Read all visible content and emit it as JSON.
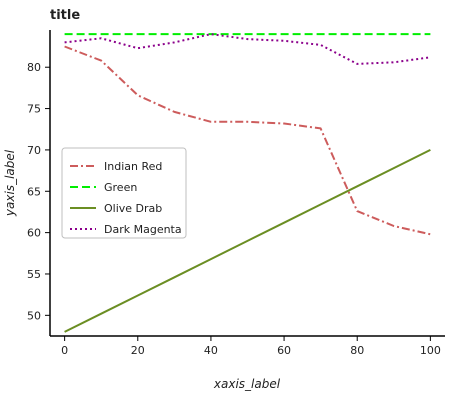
{
  "chart_data": {
    "type": "line",
    "title": "title",
    "xlabel": "xaxis_label",
    "ylabel": "yaxis_label",
    "xlim": [
      -4,
      104
    ],
    "ylim": [
      47.5,
      84.5
    ],
    "x_ticks": [
      0,
      20,
      40,
      60,
      80,
      100
    ],
    "y_ticks": [
      50,
      55,
      60,
      65,
      70,
      75,
      80
    ],
    "grid": false,
    "legend_position": "left",
    "x": [
      0,
      10,
      20,
      30,
      40,
      50,
      60,
      70,
      80,
      90,
      100
    ],
    "series": [
      {
        "name": "Indian Red",
        "color": "#cd5c5c",
        "dash": "dashdot",
        "values": [
          82.5,
          80.8,
          76.6,
          74.6,
          73.4,
          73.4,
          73.2,
          72.6,
          62.6,
          60.8,
          59.8
        ]
      },
      {
        "name": "Green",
        "color": "#00ee00",
        "dash": "dashed",
        "values": [
          84.0,
          84.0,
          84.0,
          84.0,
          84.0,
          84.0,
          84.0,
          84.0,
          84.0,
          84.0,
          84.0
        ]
      },
      {
        "name": "Olive Drab",
        "color": "#6b8e23",
        "dash": "solid",
        "values": [
          48.0,
          50.2,
          52.4,
          54.6,
          56.8,
          59.0,
          61.2,
          63.4,
          65.6,
          67.8,
          70.0
        ]
      },
      {
        "name": "Dark Magenta",
        "color": "#8b008b",
        "dash": "dotted",
        "values": [
          83.0,
          83.5,
          82.3,
          83.0,
          84.0,
          83.4,
          83.2,
          82.7,
          80.4,
          80.6,
          81.2
        ]
      }
    ]
  }
}
